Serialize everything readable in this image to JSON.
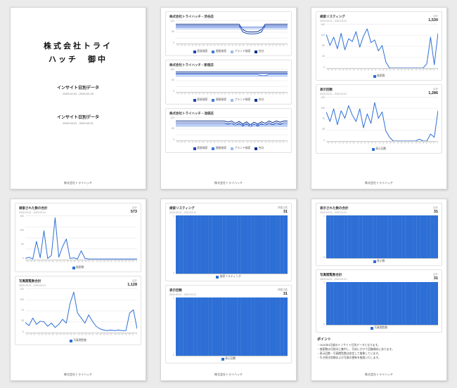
{
  "accent": "#2e6fd6",
  "footer": "株式会社トライハッチ",
  "xticks": [
    "3/1",
    "3/2",
    "3/3",
    "3/4",
    "3/5",
    "3/6",
    "3/7",
    "3/8",
    "3/9",
    "3/10",
    "3/11",
    "3/12",
    "3/13",
    "3/14",
    "3/15",
    "3/16",
    "3/17",
    "3/18",
    "3/19",
    "3/20",
    "3/21",
    "3/22",
    "3/23",
    "3/24",
    "3/25",
    "3/26",
    "3/27",
    "3/28",
    "3/29",
    "3/30",
    "3/31"
  ],
  "shared": {
    "ones": [
      1,
      1,
      1,
      1,
      1,
      1,
      1,
      1,
      1,
      1,
      1,
      1,
      1,
      1,
      1,
      1,
      1,
      1,
      1,
      1,
      1,
      1,
      1,
      1,
      1,
      1,
      1,
      1,
      1,
      1,
      1
    ]
  },
  "p1": {
    "title_line1": "株式会社トライ",
    "title_line2": "ハッチ　御中",
    "doc1_title": "インサイト日別データ",
    "doc1_range": "2020.02.01 - 2020.02.29",
    "doc2_title": "インサイト日別データ",
    "doc2_range": "2020.03.01 - 2020.03.31"
  },
  "p2": {
    "charts": [
      {
        "title": "株式会社トライハッチ・渋谷店",
        "ymax": 120,
        "yticks": [
          "120",
          "60",
          "0"
        ],
        "series": [
          {
            "name": "合計",
            "color": "#0b2f8a",
            "values": [
              100,
              100,
              100,
              100,
              100,
              100,
              100,
              100,
              100,
              100,
              100,
              100,
              100,
              100,
              100,
              100,
              100,
              100,
              72,
              62,
              60,
              60,
              62,
              72,
              100,
              100,
              100,
              100,
              100,
              100,
              100
            ]
          },
          {
            "name": "直接検索",
            "color": "#1a47b8",
            "values": [
              92,
              92,
              92,
              92,
              92,
              92,
              92,
              92,
              92,
              92,
              92,
              92,
              92,
              92,
              92,
              92,
              92,
              92,
              60,
              52,
              50,
              50,
              52,
              60,
              92,
              92,
              92,
              92,
              92,
              92,
              92
            ]
          },
          {
            "name": "間接検索",
            "color": "#3f76e6",
            "values": [
              84,
              84,
              84,
              84,
              84,
              84,
              84,
              84,
              84,
              84,
              84,
              84,
              84,
              84,
              84,
              84,
              84,
              84,
              84,
              84,
              84,
              84,
              84,
              84,
              84,
              84,
              84,
              84,
              84,
              84,
              84
            ]
          },
          {
            "name": "ブランド検索",
            "color": "#9db9ec",
            "values": [
              76,
              76,
              76,
              76,
              76,
              76,
              76,
              76,
              76,
              76,
              76,
              76,
              76,
              76,
              76,
              76,
              76,
              76,
              76,
              76,
              76,
              76,
              76,
              76,
              76,
              76,
              76,
              76,
              76,
              76,
              76
            ]
          }
        ],
        "legend": [
          {
            "label": "直接検索",
            "color": "#1a47b8"
          },
          {
            "label": "間接検索",
            "color": "#3f76e6"
          },
          {
            "label": "ブランド検索",
            "color": "#9db9ec"
          },
          {
            "label": "合計",
            "color": "#0b2f8a"
          }
        ]
      },
      {
        "title": "株式会社トライハッチ・新宿店",
        "ymax": 120,
        "yticks": [
          "120",
          "60",
          "0"
        ],
        "series": [
          {
            "name": "合計",
            "color": "#0b2f8a",
            "values": [
              103,
              103,
              103,
              103,
              103,
              103,
              103,
              103,
              103,
              103,
              103,
              103,
              103,
              103,
              103,
              103,
              103,
              103,
              103,
              103,
              103,
              103,
              103,
              103,
              103,
              103,
              103,
              103,
              103,
              103,
              103
            ]
          },
          {
            "name": "直接検索",
            "color": "#1a47b8",
            "values": [
              96,
              96,
              96,
              96,
              96,
              96,
              96,
              96,
              96,
              96,
              96,
              96,
              96,
              96,
              96,
              96,
              96,
              96,
              96,
              96,
              96,
              96,
              96,
              96,
              96,
              96,
              96,
              96,
              96,
              96,
              96
            ]
          },
          {
            "name": "間接検索",
            "color": "#3f76e6",
            "values": [
              90,
              90,
              90,
              90,
              90,
              90,
              90,
              90,
              90,
              90,
              90,
              90,
              90,
              90,
              90,
              90,
              90,
              90,
              90,
              90,
              90,
              90,
              90,
              84,
              84,
              90,
              90,
              90,
              90,
              90,
              90
            ]
          },
          {
            "name": "ブランド検索",
            "color": "#9db9ec",
            "values": [
              82,
              82,
              82,
              82,
              82,
              82,
              82,
              82,
              82,
              82,
              82,
              82,
              82,
              82,
              82,
              82,
              82,
              82,
              82,
              82,
              82,
              82,
              82,
              82,
              82,
              82,
              82,
              82,
              82,
              82,
              82
            ]
          }
        ],
        "legend": [
          {
            "label": "直接検索",
            "color": "#1a47b8"
          },
          {
            "label": "間接検索",
            "color": "#3f76e6"
          },
          {
            "label": "ブランド検索",
            "color": "#9db9ec"
          },
          {
            "label": "合計",
            "color": "#0b2f8a"
          }
        ]
      },
      {
        "title": "株式会社トライハッチ・池袋店",
        "ymax": 120,
        "yticks": [
          "120",
          "60",
          "0"
        ],
        "series": [
          {
            "name": "合計",
            "color": "#0b2f8a",
            "values": [
              100,
              100,
              100,
              100,
              100,
              100,
              100,
              100,
              100,
              100,
              100,
              100,
              100,
              100,
              95,
              100,
              88,
              98,
              84,
              96,
              80,
              94,
              84,
              96,
              88,
              100,
              92,
              100,
              94,
              100,
              100
            ]
          },
          {
            "name": "直接検索",
            "color": "#1a47b8",
            "values": [
              90,
              90,
              90,
              90,
              90,
              90,
              90,
              90,
              90,
              90,
              90,
              90,
              90,
              90,
              85,
              90,
              78,
              88,
              74,
              86,
              70,
              84,
              74,
              86,
              78,
              90,
              82,
              90,
              84,
              90,
              90
            ]
          },
          {
            "name": "間接検索",
            "color": "#3f76e6",
            "values": [
              80,
              80,
              80,
              80,
              80,
              80,
              80,
              80,
              80,
              80,
              80,
              80,
              80,
              80,
              80,
              80,
              80,
              80,
              80,
              80,
              80,
              80,
              80,
              80,
              80,
              80,
              80,
              80,
              80,
              80,
              80
            ]
          },
          {
            "name": "ブランド検索",
            "color": "#9db9ec",
            "values": [
              72,
              72,
              72,
              72,
              72,
              72,
              72,
              72,
              72,
              72,
              72,
              72,
              72,
              72,
              72,
              72,
              72,
              72,
              72,
              72,
              72,
              72,
              72,
              72,
              72,
              72,
              72,
              72,
              72,
              72,
              72
            ]
          }
        ],
        "legend": [
          {
            "label": "直接検索",
            "color": "#1a47b8"
          },
          {
            "label": "間接検索",
            "color": "#3f76e6"
          },
          {
            "label": "ブランド検索",
            "color": "#9db9ec"
          },
          {
            "label": "合計",
            "color": "#0b2f8a"
          }
        ]
      }
    ]
  },
  "p3": {
    "charts": [
      {
        "title": "検索リスティング",
        "range": "2020.03.01 - 2020.03.31",
        "value_label": "合計",
        "value": "1,530",
        "type": "line",
        "color": "#2e6fd6",
        "ymax": 160,
        "yticks": [
          "160",
          "120",
          "80",
          "40",
          "0"
        ],
        "values": [
          122,
          82,
          112,
          70,
          126,
          66,
          106,
          96,
          132,
          76,
          116,
          142,
          92,
          102,
          62,
          82,
          22,
          0,
          0,
          0,
          0,
          0,
          0,
          0,
          0,
          0,
          0,
          16,
          112,
          12,
          126
        ],
        "legend": [
          {
            "label": "検索数",
            "color": "#2e6fd6"
          }
        ]
      },
      {
        "title": "表示回数",
        "range": "2020.03.01 - 2020.03.31",
        "value_label": "合計",
        "value": "1,286",
        "type": "line",
        "color": "#2e6fd6",
        "ymax": 140,
        "yticks": [
          "140",
          "105",
          "70",
          "35",
          "0"
        ],
        "values": [
          92,
          62,
          102,
          52,
          96,
          72,
          112,
          82,
          62,
          102,
          42,
          86,
          56,
          122,
          72,
          92,
          32,
          12,
          0,
          0,
          0,
          0,
          0,
          0,
          0,
          6,
          0,
          0,
          22,
          12,
          96
        ],
        "legend": [
          {
            "label": "表示回数",
            "color": "#2e6fd6"
          }
        ]
      }
    ]
  },
  "p4": {
    "charts": [
      {
        "title": "検索された数の合計",
        "range": "2020.03.01 - 2020.03.31",
        "value_label": "合計",
        "value": "573",
        "type": "line",
        "color": "#2e6fd6",
        "ymax": 150,
        "yticks": [
          "150",
          "100",
          "50",
          "0"
        ],
        "values": [
          4,
          8,
          2,
          62,
          6,
          98,
          4,
          14,
          142,
          8,
          44,
          70,
          4,
          6,
          2,
          30,
          4,
          2,
          2,
          2,
          2,
          2,
          2,
          2,
          2,
          2,
          2,
          2,
          2,
          2,
          2
        ],
        "legend": [
          {
            "label": "検索数",
            "color": "#2e6fd6"
          }
        ]
      },
      {
        "title": "写真閲覧数合計",
        "range": "2020.03.01 - 2020.03.31",
        "value_label": "合計",
        "value": "1,128",
        "type": "line",
        "color": "#2e6fd6",
        "ymax": 140,
        "yticks": [
          "140",
          "105",
          "70",
          "35",
          "0"
        ],
        "values": [
          32,
          22,
          46,
          26,
          36,
          34,
          20,
          30,
          16,
          26,
          42,
          30,
          92,
          128,
          62,
          46,
          30,
          56,
          36,
          20,
          12,
          8,
          6,
          8,
          6,
          8,
          6,
          6,
          62,
          72,
          12
        ],
        "legend": [
          {
            "label": "写真閲覧数",
            "color": "#2e6fd6"
          }
        ]
      }
    ]
  },
  "p5": {
    "charts": [
      {
        "title": "検索リスティング",
        "range": "2020.03.01 - 2020.03.31",
        "value_label": "掲載日数",
        "value": "31",
        "type": "bar",
        "color": "#2e6fd6",
        "ymax": 1,
        "yticks": [
          "1",
          "0"
        ],
        "values": "shared.ones",
        "legend": [
          {
            "label": "検索リスティング",
            "color": "#2e6fd6"
          }
        ]
      },
      {
        "title": "表示回数",
        "range": "2020.03.01 - 2020.03.31",
        "value_label": "掲載日数",
        "value": "31",
        "type": "bar",
        "color": "#2e6fd6",
        "ymax": 1,
        "yticks": [
          "1",
          "0"
        ],
        "values": "shared.ones",
        "legend": [
          {
            "label": "表示回数",
            "color": "#2e6fd6"
          }
        ]
      }
    ]
  },
  "p6": {
    "charts": [
      {
        "title": "表示された数の合計",
        "range": "2020.03.01 - 2020.03.31",
        "value_label": "合計",
        "value": "31",
        "type": "bar",
        "color": "#2e6fd6",
        "ymax": 1,
        "yticks": [
          "1",
          "0"
        ],
        "values": "shared.ones",
        "legend": [
          {
            "label": "表示数",
            "color": "#2e6fd6"
          }
        ]
      },
      {
        "title": "写真閲覧数合計",
        "range": "2020.03.01 - 2020.03.31",
        "value_label": "合計",
        "value": "31",
        "type": "bar",
        "color": "#2e6fd6",
        "ymax": 1,
        "yticks": [
          "1",
          "0"
        ],
        "values": "shared.ones",
        "legend": [
          {
            "label": "写真閲覧数",
            "color": "#2e6fd6"
          }
        ]
      }
    ],
    "notes_title": "ポイント",
    "notes": [
      "・2020年3月度のインサイト日別データとなります。",
      "・検索数は月前半に集中し、月末にかけて回復傾向にあります。",
      "・表示回数・写真閲覧数は安定して推移しています。",
      "・引き続き投稿および写真の更新を推奨いたします。"
    ]
  },
  "chart_data": {
    "note": "see p2/p3/p4/p5/p6 chart objects above for full series data"
  }
}
